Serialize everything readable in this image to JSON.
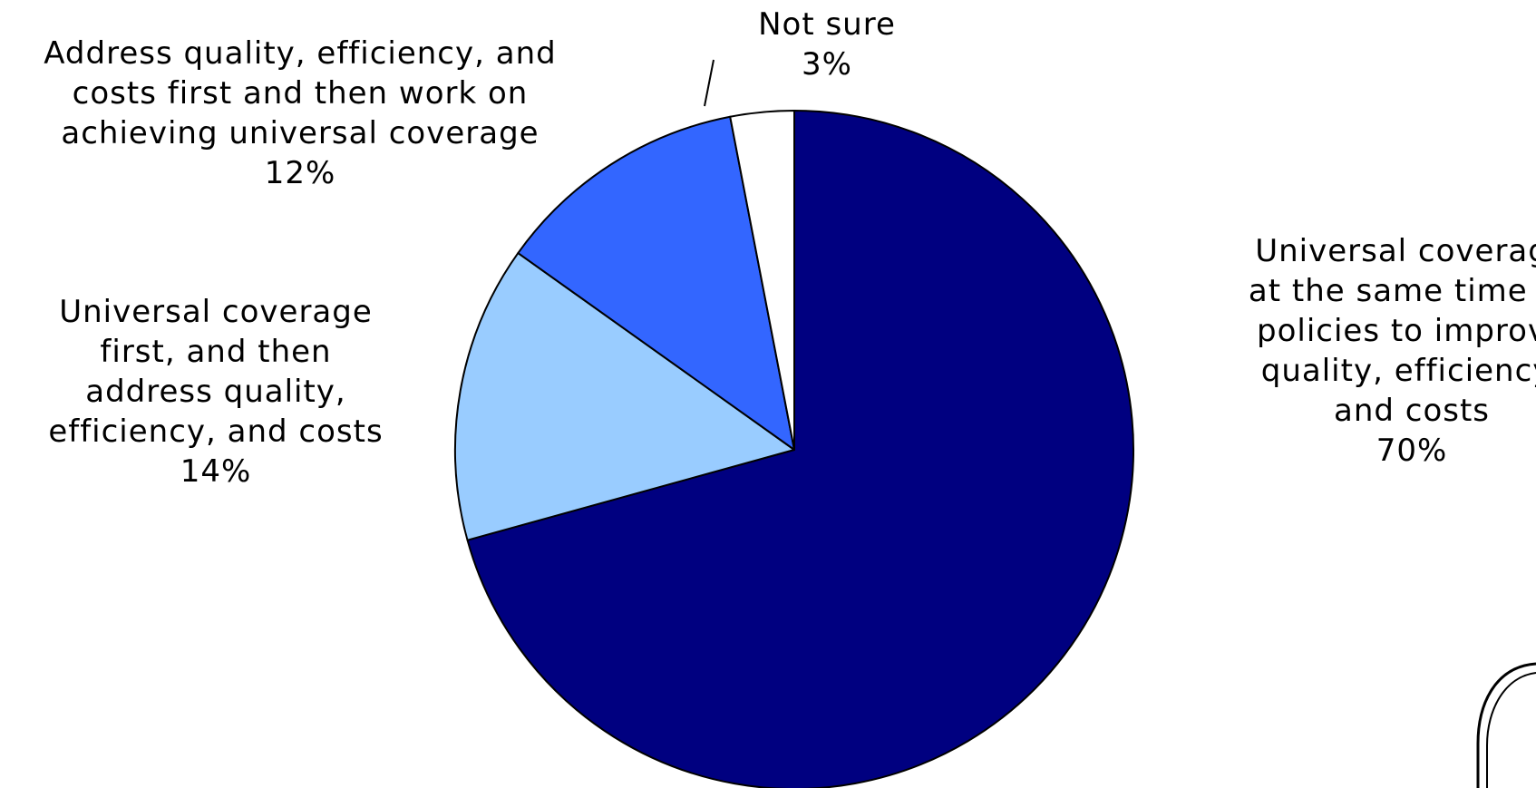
{
  "chart_data": {
    "type": "pie",
    "title": "",
    "start_angle_deg": 0,
    "direction": "clockwise",
    "slices": [
      {
        "label_lines": [
          "Universal coverage",
          "at the same time as",
          "policies to improve",
          "quality, efficiency,",
          "and costs"
        ],
        "value": 70,
        "value_label": "70%",
        "color": "#000080"
      },
      {
        "label_lines": [
          "Universal coverage",
          "first, and then",
          "address quality,",
          "efficiency, and costs"
        ],
        "value": 14,
        "value_label": "14%",
        "color": "#99CCFF"
      },
      {
        "label_lines": [
          "Address quality, efficiency, and",
          "costs first and then work on",
          "achieving universal coverage"
        ],
        "value": 12,
        "value_label": "12%",
        "color": "#3366FF"
      },
      {
        "label_lines": [
          "Not sure"
        ],
        "value": 3,
        "value_label": "3%",
        "color": "#FFFFFF"
      }
    ],
    "legend": "none",
    "slice_border_color": "#000000"
  }
}
